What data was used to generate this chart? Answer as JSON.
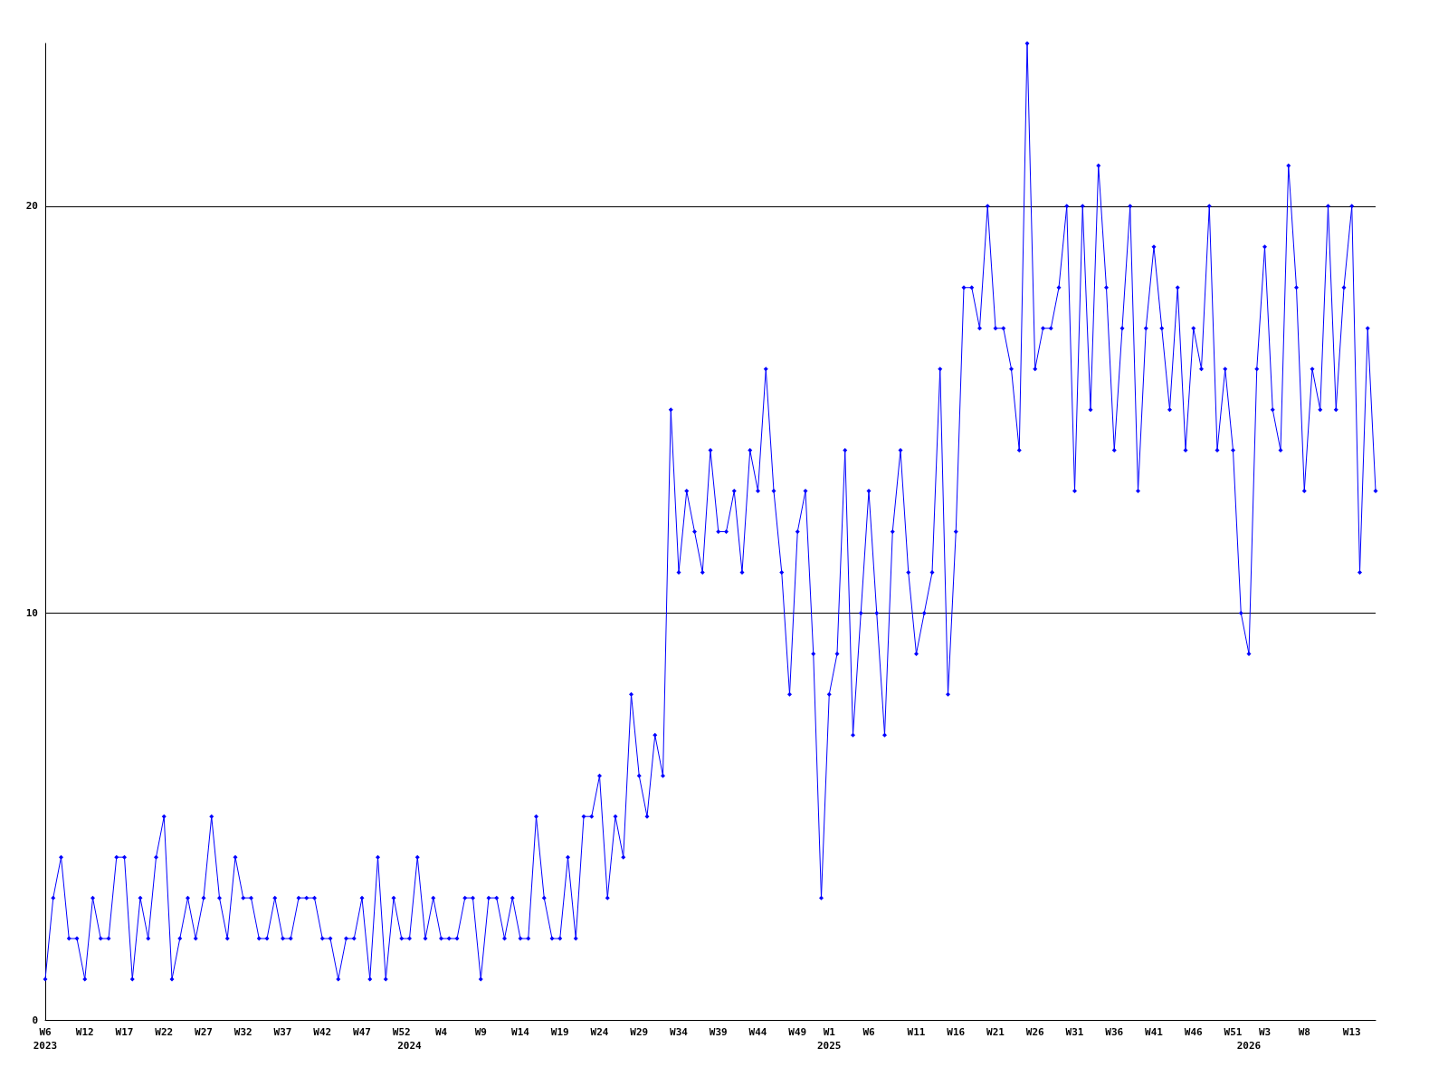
{
  "chart_data": {
    "type": "line",
    "categories": [
      "W6\n2023",
      null,
      null,
      null,
      null,
      "W12",
      null,
      null,
      null,
      null,
      "W17",
      null,
      null,
      null,
      null,
      "W22",
      null,
      null,
      null,
      null,
      "W27",
      null,
      null,
      null,
      null,
      "W32",
      null,
      null,
      null,
      null,
      "W37",
      null,
      null,
      null,
      null,
      "W42",
      null,
      null,
      null,
      null,
      "W47",
      null,
      null,
      null,
      null,
      "W52",
      "\n2024",
      null,
      null,
      null,
      "W4",
      null,
      null,
      null,
      null,
      "W9",
      null,
      null,
      null,
      null,
      "W14",
      null,
      null,
      null,
      null,
      "W19",
      null,
      null,
      null,
      null,
      "W24",
      null,
      null,
      null,
      null,
      "W29",
      null,
      null,
      null,
      null,
      "W34",
      null,
      null,
      null,
      null,
      "W39",
      null,
      null,
      null,
      null,
      "W44",
      null,
      null,
      null,
      null,
      "W49",
      null,
      null,
      null,
      "W1\n2025",
      null,
      null,
      null,
      null,
      "W6",
      null,
      null,
      null,
      null,
      null,
      "W11",
      null,
      null,
      null,
      null,
      "W16",
      null,
      null,
      null,
      null,
      "W21",
      null,
      null,
      null,
      null,
      "W26",
      null,
      null,
      null,
      null,
      "W31",
      null,
      null,
      null,
      null,
      "W36",
      null,
      null,
      null,
      null,
      "W41",
      null,
      null,
      null,
      null,
      "W46",
      null,
      null,
      null,
      null,
      "W51",
      null,
      "\n2026",
      null,
      "W3",
      null,
      null,
      null,
      null,
      "W8",
      null,
      null,
      null,
      null,
      null,
      "W13",
      null,
      null,
      null
    ],
    "series": [
      {
        "color": "#0000ff",
        "values": [
          1,
          3,
          4,
          2,
          2,
          1,
          3,
          2,
          2,
          4,
          4,
          1,
          3,
          2,
          4,
          5,
          1,
          2,
          3,
          2,
          3,
          5,
          3,
          2,
          4,
          3,
          3,
          2,
          2,
          3,
          2,
          2,
          3,
          3,
          3,
          2,
          2,
          1,
          2,
          2,
          3,
          1,
          4,
          1,
          3,
          2,
          2,
          4,
          2,
          3,
          2,
          2,
          2,
          3,
          3,
          1,
          3,
          3,
          2,
          3,
          2,
          2,
          5,
          3,
          2,
          2,
          4,
          2,
          5,
          5,
          6,
          3,
          5,
          4,
          8,
          6,
          5,
          7,
          6,
          15,
          11,
          13,
          12,
          11,
          14,
          12,
          12,
          13,
          11,
          14,
          13,
          16,
          13,
          11,
          8,
          12,
          13,
          9,
          3,
          8,
          9,
          14,
          7,
          10,
          13,
          10,
          7,
          12,
          14,
          11,
          9,
          10,
          11,
          16,
          8,
          12,
          18,
          18,
          17,
          20,
          17,
          17,
          16,
          14,
          24,
          16,
          17,
          17,
          18,
          20,
          13,
          20,
          15,
          21,
          18,
          14,
          17,
          20,
          13,
          17,
          19,
          17,
          15,
          18,
          14,
          17,
          16,
          20,
          14,
          16,
          14,
          10,
          9,
          16,
          19,
          15,
          14,
          21,
          18,
          13,
          16,
          15,
          20,
          15,
          18,
          20,
          11,
          17,
          13
        ]
      }
    ],
    "ylim": [
      0,
      24
    ],
    "yticks": [
      0,
      10,
      20
    ],
    "grid": "y",
    "marker": "diamond",
    "line_style": "solid"
  }
}
